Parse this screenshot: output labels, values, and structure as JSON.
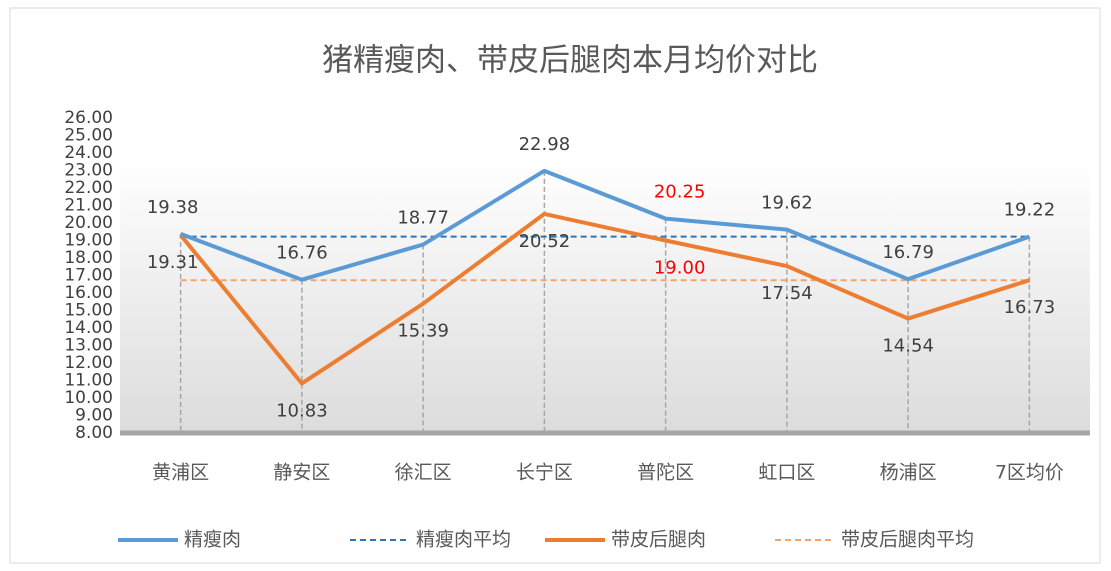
{
  "chart_data": {
    "type": "line",
    "title": "猪精瘦肉、带皮后腿肉本月均价对比",
    "categories": [
      "黄浦区",
      "静安区",
      "徐汇区",
      "长宁区",
      "普陀区",
      "虹口区",
      "杨浦区",
      "7区均价"
    ],
    "series": [
      {
        "name": "精瘦肉",
        "color": "#5b9bd5",
        "dashed": false,
        "values": [
          19.38,
          16.76,
          18.77,
          22.98,
          20.25,
          19.62,
          16.79,
          19.22
        ],
        "value_labels": [
          "19.38",
          "16.76",
          "18.77",
          "22.98",
          "20.25",
          "19.62",
          "16.79",
          "19.22"
        ],
        "value_label_colors": [
          "#404040",
          "#404040",
          "#404040",
          "#404040",
          "#ff0000",
          "#404040",
          "#404040",
          "#404040"
        ]
      },
      {
        "name": "精瘦肉平均",
        "color": "#2e75b6",
        "dashed": true,
        "values": [
          19.22,
          19.22,
          19.22,
          19.22,
          19.22,
          19.22,
          19.22,
          19.22
        ]
      },
      {
        "name": "带皮后腿肉",
        "color": "#ed7d31",
        "dashed": false,
        "values": [
          19.31,
          10.83,
          15.39,
          20.52,
          19.0,
          17.54,
          14.54,
          16.73
        ],
        "value_labels": [
          "19.31",
          "10.83",
          "15.39",
          "20.52",
          "19.00",
          "17.54",
          "14.54",
          "16.73"
        ],
        "value_label_colors": [
          "#404040",
          "#404040",
          "#404040",
          "#404040",
          "#ff0000",
          "#404040",
          "#404040",
          "#404040"
        ]
      },
      {
        "name": "带皮后腿肉平均",
        "color": "#f4a36b",
        "dashed": true,
        "values": [
          16.73,
          16.73,
          16.73,
          16.73,
          16.73,
          16.73,
          16.73,
          16.73
        ]
      }
    ],
    "ylim": [
      8,
      26
    ],
    "yticks": [
      {
        "value": 8,
        "label": "8.00"
      },
      {
        "value": 9,
        "label": "9.00"
      },
      {
        "value": 10,
        "label": "10.00"
      },
      {
        "value": 11,
        "label": "11.00"
      },
      {
        "value": 12,
        "label": "12.00"
      },
      {
        "value": 13,
        "label": "13.00"
      },
      {
        "value": 14,
        "label": "14.00"
      },
      {
        "value": 15,
        "label": "15.00"
      },
      {
        "value": 16,
        "label": "16.00"
      },
      {
        "value": 17,
        "label": "17.00"
      },
      {
        "value": 18,
        "label": "18.00"
      },
      {
        "value": 19,
        "label": "19.00"
      },
      {
        "value": 20,
        "label": "20.00"
      },
      {
        "value": 21,
        "label": "21.00"
      },
      {
        "value": 22,
        "label": "22.00"
      },
      {
        "value": 23,
        "label": "23.00"
      },
      {
        "value": 24,
        "label": "24.00"
      },
      {
        "value": 25,
        "label": "25.00"
      },
      {
        "value": 26,
        "label": "26.00"
      }
    ],
    "grid": false,
    "legend": "bottom"
  }
}
